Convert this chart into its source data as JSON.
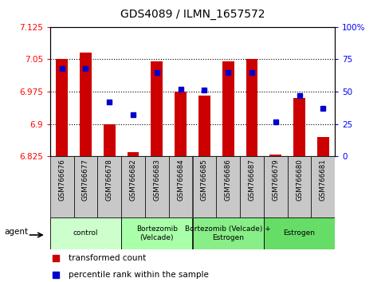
{
  "title": "GDS4089 / ILMN_1657572",
  "samples": [
    "GSM766676",
    "GSM766677",
    "GSM766678",
    "GSM766682",
    "GSM766683",
    "GSM766684",
    "GSM766685",
    "GSM766686",
    "GSM766687",
    "GSM766679",
    "GSM766680",
    "GSM766681"
  ],
  "bar_values": [
    7.05,
    7.065,
    6.9,
    6.835,
    7.045,
    6.975,
    6.965,
    7.045,
    7.05,
    6.83,
    6.96,
    6.87
  ],
  "dot_values": [
    68,
    68,
    42,
    32,
    65,
    52,
    51,
    65,
    65,
    27,
    47,
    37
  ],
  "ymin": 6.825,
  "ymax": 7.125,
  "y_ticks": [
    6.825,
    6.9,
    6.975,
    7.05,
    7.125
  ],
  "y_tick_labels": [
    "6.825",
    "6.9",
    "6.975",
    "7.05",
    "7.125"
  ],
  "y2min": 0,
  "y2max": 100,
  "y2_ticks": [
    0,
    25,
    50,
    75,
    100
  ],
  "y2_tick_labels": [
    "0",
    "25",
    "50",
    "75",
    "100%"
  ],
  "groups": [
    {
      "label": "control",
      "start": 0,
      "end": 3,
      "color": "#ccffcc"
    },
    {
      "label": "Bortezomib\n(Velcade)",
      "start": 3,
      "end": 6,
      "color": "#aaffaa"
    },
    {
      "label": "Bortezomib (Velcade) +\nEstrogen",
      "start": 6,
      "end": 9,
      "color": "#88ee88"
    },
    {
      "label": "Estrogen",
      "start": 9,
      "end": 12,
      "color": "#66dd66"
    }
  ],
  "bar_color": "#cc0000",
  "dot_color": "#0000cc",
  "bar_width": 0.5,
  "legend_bar_label": "transformed count",
  "legend_dot_label": "percentile rank within the sample",
  "agent_label": "agent",
  "tick_area_color": "#c8c8c8",
  "gridline_y": [
    6.9,
    6.975,
    7.05
  ]
}
